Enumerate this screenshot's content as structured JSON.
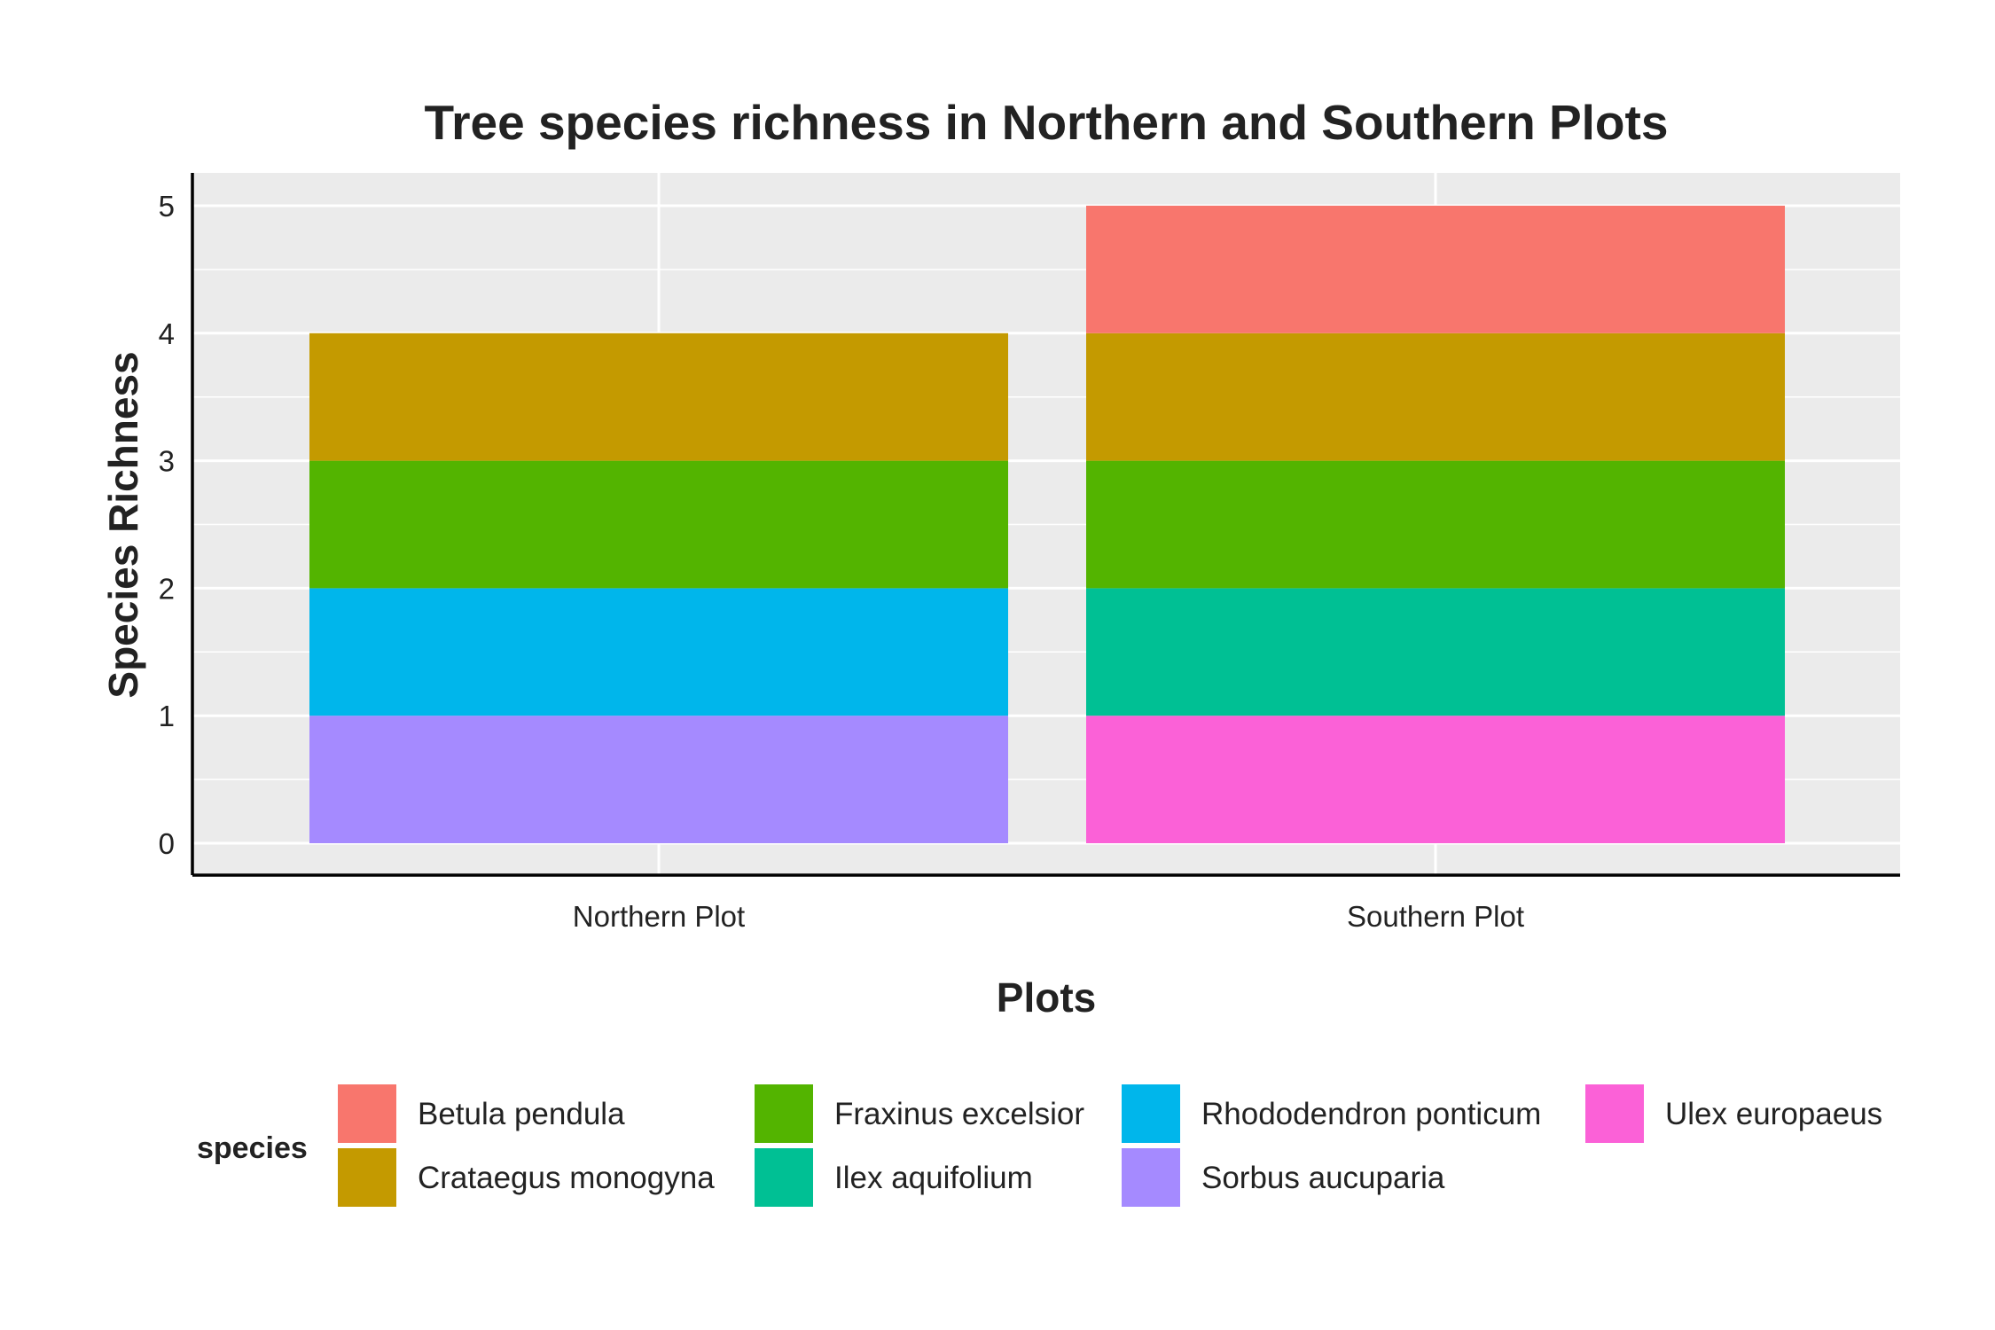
{
  "chart_data": {
    "type": "bar",
    "stacked": true,
    "title": "Tree species richness in Northern and Southern Plots",
    "xlabel": "Plots",
    "ylabel": "Species Richness",
    "categories": [
      "Northern Plot",
      "Southern Plot"
    ],
    "ylim": [
      0,
      5
    ],
    "y_ticks": [
      0,
      1,
      2,
      3,
      4,
      5
    ],
    "grid": true,
    "legend": {
      "title": "species",
      "position": "bottom"
    },
    "series": [
      {
        "name": "Betula pendula",
        "color": "#F8766D",
        "values": [
          0,
          1
        ]
      },
      {
        "name": "Crataegus monogyna",
        "color": "#C49A00",
        "values": [
          1,
          1
        ]
      },
      {
        "name": "Fraxinus excelsior",
        "color": "#53B400",
        "values": [
          1,
          1
        ]
      },
      {
        "name": "Ilex aquifolium",
        "color": "#00C094",
        "values": [
          0,
          1
        ]
      },
      {
        "name": "Rhododendron ponticum",
        "color": "#00B6EB",
        "values": [
          1,
          0
        ]
      },
      {
        "name": "Sorbus aucuparia",
        "color": "#A58AFF",
        "values": [
          1,
          0
        ]
      },
      {
        "name": "Ulex europaeus",
        "color": "#FB61D7",
        "values": [
          0,
          1
        ]
      }
    ],
    "stack_order_bottom_to_top": [
      "Ulex europaeus",
      "Sorbus aucuparia",
      "Rhododendron ponticum",
      "Ilex aquifolium",
      "Fraxinus excelsior",
      "Crataegus monogyna",
      "Betula pendula"
    ],
    "panel_background": "#EBEBEB",
    "grid_color": "#FFFFFF"
  }
}
